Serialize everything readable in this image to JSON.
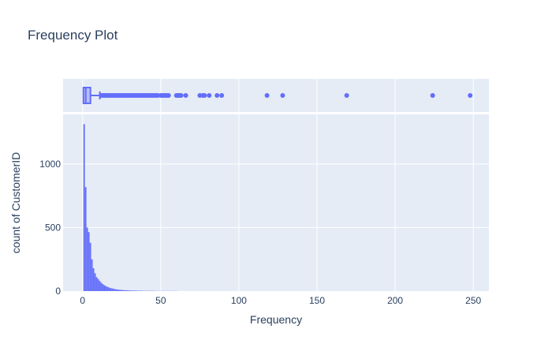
{
  "chart_data": {
    "type": "histogram",
    "title": "Frequency Plot",
    "xlabel": "Frequency",
    "ylabel": "count of CustomerID",
    "xlim": [
      -12.5,
      260
    ],
    "ylim": [
      0,
      1390
    ],
    "x_ticks": [
      "0",
      "50",
      "100",
      "150",
      "200",
      "250"
    ],
    "y_ticks": [
      "0",
      "500",
      "1000"
    ],
    "grid": true,
    "legend": "none",
    "histogram": {
      "bin_start": 1,
      "bin_width": 1,
      "counts": [
        1313,
        818,
        500,
        464,
        380,
        250,
        180,
        140,
        110,
        95,
        80,
        66,
        55,
        46,
        39,
        33,
        28,
        24,
        21,
        18,
        15,
        13,
        12,
        10,
        9,
        8,
        7,
        7,
        6,
        5,
        5,
        4,
        4,
        4,
        3,
        3,
        3,
        3,
        2,
        2,
        2,
        2,
        2,
        2,
        2,
        1,
        1,
        1,
        1,
        1,
        1,
        1,
        1,
        1,
        1,
        1,
        1,
        1,
        1,
        1
      ]
    },
    "box": {
      "min": 1,
      "q1": 1,
      "median": 2,
      "q3": 5,
      "upper_fence": 11,
      "outliers": [
        12,
        13,
        14,
        15,
        16,
        17,
        18,
        19,
        20,
        21,
        22,
        23,
        24,
        25,
        26,
        27,
        28,
        29,
        30,
        31,
        32,
        33,
        34,
        35,
        36,
        37,
        38,
        39,
        40,
        41,
        42,
        43,
        44,
        45,
        46,
        47,
        48,
        50,
        51,
        52,
        53,
        54,
        55,
        60,
        61,
        62,
        63,
        66,
        75,
        77,
        78,
        81,
        86,
        89,
        118,
        128,
        169,
        224,
        248
      ]
    },
    "colors": {
      "series": "#636efa",
      "plot_bg": "#e5ecf6",
      "grid": "#ffffff",
      "text": "#2a3f5f"
    }
  }
}
